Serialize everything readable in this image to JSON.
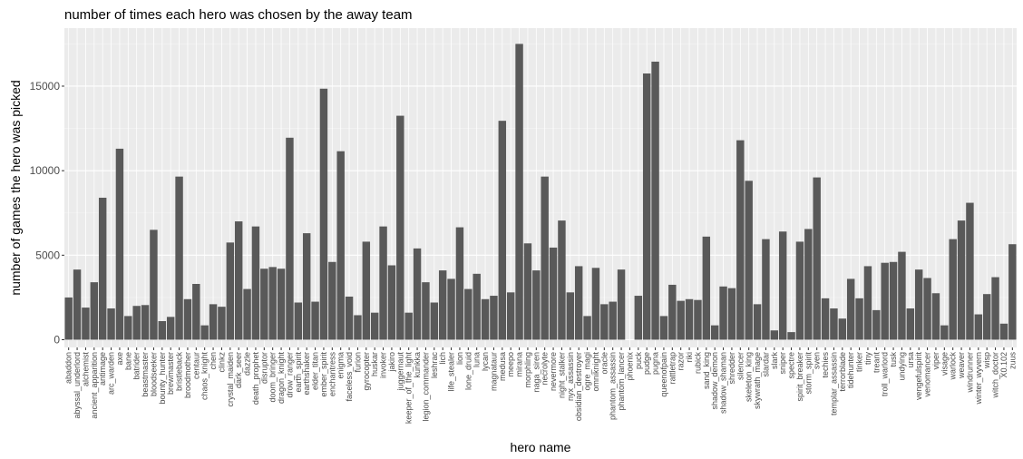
{
  "chart_data": {
    "type": "bar",
    "title": "number of times each hero was chosen by the away team",
    "xlabel": "hero name",
    "ylabel": "number of games the hero was picked",
    "ylim": [
      0,
      17500
    ],
    "yticks": [
      0,
      5000,
      10000,
      15000
    ],
    "ytick_labels": [
      "0",
      "5000",
      "10000",
      "15000"
    ],
    "grid": true,
    "legend": "none",
    "colors": {
      "bar": "#595959",
      "panel": "#ebebeb",
      "grid_major": "#ffffff",
      "grid_minor": "#f5f5f5"
    },
    "categories": [
      "abaddon",
      "abyssal_underlord",
      "alchemist",
      "ancient_apparition",
      "antimage",
      "arc_warden",
      "axe",
      "bane",
      "batrider",
      "beastmaster",
      "bloodseeker",
      "bounty_hunter",
      "brewmaster",
      "bristleback",
      "broodmother",
      "centaur",
      "chaos_knight",
      "chen",
      "clinkz",
      "crystal_maiden",
      "dark_seer",
      "dazzle",
      "death_prophet",
      "disruptor",
      "doom_bringer",
      "dragon_knight",
      "drow_ranger",
      "earth_spirit",
      "earthshaker",
      "elder_titan",
      "ember_spirit",
      "enchantress",
      "enigma",
      "faceless_void",
      "furion",
      "gyrocopter",
      "huskar",
      "invoker",
      "jakiro",
      "juggernaut",
      "keeper_of_the_light",
      "kunkka",
      "legion_commander",
      "leshrac",
      "lich",
      "life_stealer",
      "lion",
      "lone_druid",
      "luna",
      "lycan",
      "magnataur",
      "medusa",
      "meepo",
      "mirana",
      "morphling",
      "naga_siren",
      "necrolyte",
      "nevermore",
      "night_stalker",
      "nyx_assassin",
      "obsidian_destroyer",
      "ogre_magi",
      "omniknight",
      "oracle",
      "phantom_assassin",
      "phantom_lancer",
      "phoenix",
      "puck",
      "pudge",
      "pugna",
      "queenofpain",
      "rattletrap",
      "razor",
      "riki",
      "rubick",
      "sand_king",
      "shadow_demon",
      "shadow_shaman",
      "shredder",
      "silencer",
      "skeleton_king",
      "skywrath_mage",
      "slardar",
      "slark",
      "sniper",
      "spectre",
      "spirit_breaker",
      "storm_spirit",
      "sven",
      "techies",
      "templar_assassin",
      "terrorblade",
      "tidehunter",
      "tinker",
      "tiny",
      "treant",
      "troll_warlord",
      "tusk",
      "undying",
      "ursa",
      "vengefulspirit",
      "venomancer",
      "viper",
      "visage",
      "warlock",
      "weaver",
      "windrunner",
      "winter_wyvern",
      "wisp",
      "witch_doctor",
      "X0.102",
      "zuus"
    ],
    "values": [
      2500,
      4150,
      1900,
      3400,
      8400,
      1850,
      11300,
      1400,
      2000,
      2050,
      6500,
      1100,
      1350,
      9650,
      2400,
      3300,
      850,
      2100,
      1950,
      5750,
      7000,
      3000,
      6700,
      4200,
      4300,
      4200,
      11950,
      2200,
      6300,
      2250,
      14850,
      4600,
      11150,
      2550,
      1450,
      5800,
      1600,
      6700,
      4400,
      13250,
      1600,
      5400,
      3400,
      2200,
      4100,
      3600,
      6650,
      3000,
      3900,
      2400,
      2600,
      12950,
      2800,
      17500,
      5700,
      4100,
      9650,
      5450,
      7050,
      2800,
      4350,
      1400,
      4250,
      2100,
      2250,
      4150,
      0,
      2600,
      15750,
      16450,
      1400,
      3250,
      2300,
      2400,
      2350,
      6100,
      850,
      3150,
      3050,
      11800,
      9400,
      2100,
      5950,
      550,
      6400,
      450,
      5800,
      6550,
      9600,
      2450,
      1850,
      1250,
      3600,
      2450,
      4350,
      1750,
      4550,
      4600,
      5200,
      1850,
      4150,
      3650,
      2750,
      850,
      5950,
      7050,
      8100,
      1500,
      2700,
      3700,
      950,
      5650
    ]
  }
}
